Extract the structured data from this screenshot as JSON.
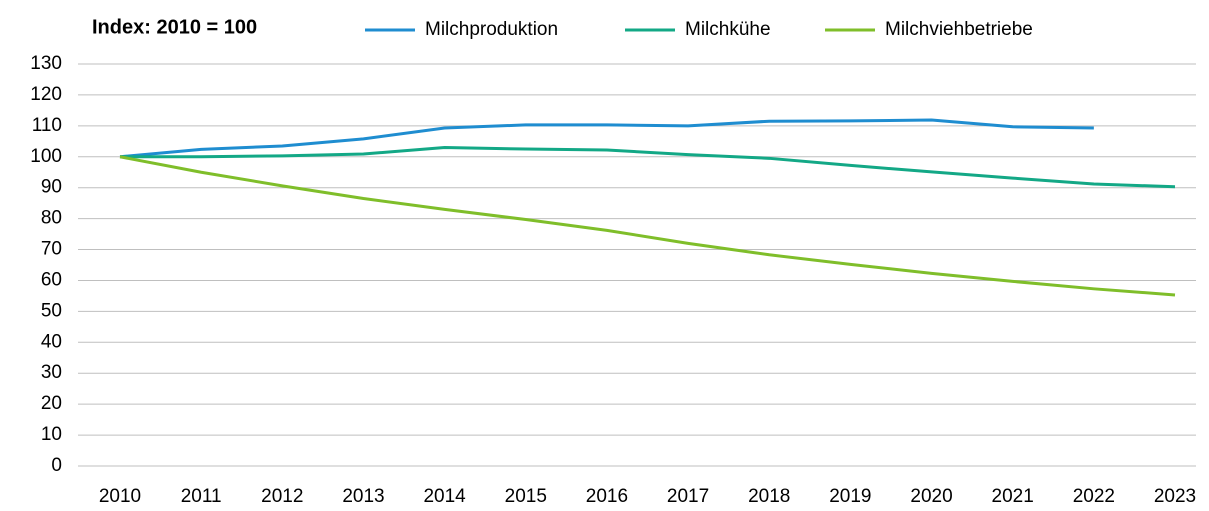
{
  "chart_data": {
    "type": "line",
    "title": "Index: 2010 = 100",
    "categories": [
      "2010",
      "2011",
      "2012",
      "2013",
      "2014",
      "2015",
      "2016",
      "2017",
      "2018",
      "2019",
      "2020",
      "2021",
      "2022",
      "2023"
    ],
    "series": [
      {
        "name": "Milchproduktion",
        "color": "#1f8dd0",
        "values": [
          100,
          102.4,
          103.5,
          105.8,
          109.3,
          110.3,
          110.3,
          110.0,
          111.5,
          111.6,
          111.9,
          109.7,
          109.3,
          null
        ]
      },
      {
        "name": "Milchkühe",
        "color": "#13a886",
        "values": [
          100,
          100.0,
          100.3,
          100.9,
          103.0,
          102.5,
          102.2,
          100.7,
          99.5,
          97.2,
          95.1,
          93.1,
          91.2,
          90.3
        ]
      },
      {
        "name": "Milchviehbetriebe",
        "color": "#7fbe2a",
        "values": [
          100,
          95.0,
          90.6,
          86.5,
          83.0,
          79.7,
          76.2,
          72.0,
          68.3,
          65.2,
          62.3,
          59.7,
          57.3,
          55.3
        ]
      }
    ],
    "ylim": [
      0,
      130
    ],
    "yticks": [
      0,
      10,
      20,
      30,
      40,
      50,
      60,
      70,
      80,
      90,
      100,
      110,
      120,
      130
    ],
    "grid": true
  }
}
